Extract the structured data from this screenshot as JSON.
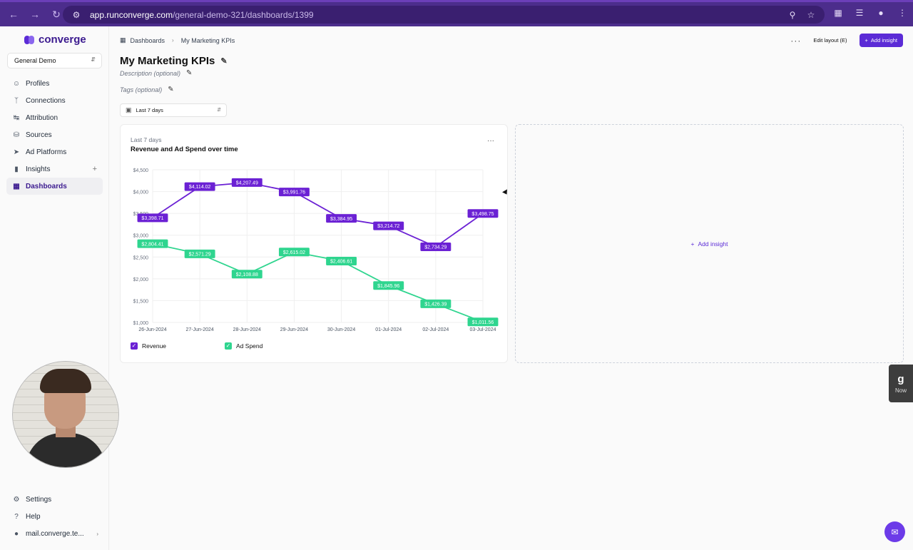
{
  "browser": {
    "url_host": "app.runconverge.com",
    "url_path": "/general-demo-321/dashboards/1399"
  },
  "sidebar": {
    "logo": "converge",
    "workspace": "General Demo",
    "items": [
      {
        "label": "Profiles",
        "icon": "user-icon"
      },
      {
        "label": "Connections",
        "icon": "connections-icon"
      },
      {
        "label": "Attribution",
        "icon": "attribution-icon"
      },
      {
        "label": "Sources",
        "icon": "database-icon"
      },
      {
        "label": "Ad Platforms",
        "icon": "megaphone-icon"
      },
      {
        "label": "Insights",
        "icon": "bar-chart-icon"
      },
      {
        "label": "Dashboards",
        "icon": "grid-icon"
      }
    ],
    "bottom": [
      {
        "label": "Settings",
        "icon": "gear-icon"
      },
      {
        "label": "Help",
        "icon": "help-icon"
      },
      {
        "label": "mail.converge.te...",
        "icon": "person-icon"
      }
    ]
  },
  "header": {
    "breadcrumb_root": "Dashboards",
    "breadcrumb_current": "My Marketing KPIs",
    "edit_layout": "Edit layout (E)",
    "add_insight": "Add insight"
  },
  "page": {
    "title": "My Marketing KPIs",
    "description_placeholder": "Description (optional)",
    "tags_placeholder": "Tags (optional)",
    "date_range": "Last 7 days"
  },
  "card": {
    "subtitle": "Last 7 days",
    "title": "Revenue and Ad Spend over time"
  },
  "placeholder": {
    "add_insight": "Add insight"
  },
  "side_badge": {
    "logo": "g",
    "label": "Now"
  },
  "colors": {
    "accent": "#5b2bd6",
    "revenue": "#6b21d4",
    "ad_spend": "#2fd58f"
  },
  "chart_data": {
    "type": "line",
    "title": "Revenue and Ad Spend over time",
    "x": [
      "26-Jun-2024",
      "27-Jun-2024",
      "28-Jun-2024",
      "29-Jun-2024",
      "30-Jun-2024",
      "01-Jul-2024",
      "02-Jul-2024",
      "03-Jul-2024"
    ],
    "y_ticks": [
      "$1,000",
      "$1,500",
      "$2,000",
      "$2,500",
      "$3,000",
      "$3,500",
      "$4,000",
      "$4,500"
    ],
    "ylim": [
      1000,
      4500
    ],
    "grid": true,
    "legend_placement": "bottom-left",
    "series": [
      {
        "name": "Revenue",
        "color": "#6b21d4",
        "values": [
          3398.71,
          4114.02,
          4207.49,
          3991.76,
          3384.95,
          3214.72,
          2734.29,
          3498.75
        ],
        "labels": [
          "$3,398.71",
          "$4,114.02",
          "$4,207.49",
          "$3,991.76",
          "$3,384.95",
          "$3,214.72",
          "$2,734.29",
          "$3,498.75"
        ]
      },
      {
        "name": "Ad Spend",
        "color": "#2fd58f",
        "values": [
          2804.41,
          2571.29,
          2108.88,
          2615.02,
          2406.61,
          1845.96,
          1426.39,
          1011.56
        ],
        "labels": [
          "$2,804.41",
          "$2,571.29",
          "$2,108.88",
          "$2,615.02",
          "$2,406.61",
          "$1,845.96",
          "$1,426.39",
          "$1,011.56"
        ]
      }
    ]
  }
}
